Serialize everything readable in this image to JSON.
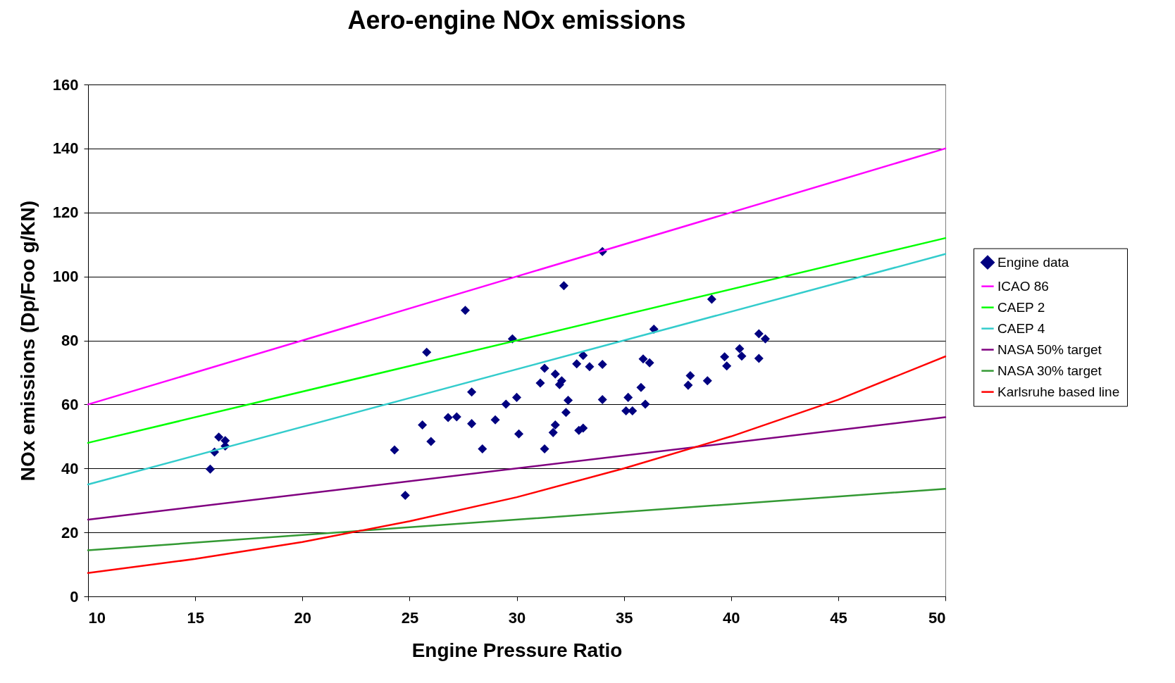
{
  "chart_data": {
    "type": "scatter",
    "title": "Aero-engine NOx emissions",
    "xlabel": "Engine Pressure Ratio",
    "ylabel": "NOx emissions (Dp/Foo g/KN)",
    "xlim": [
      10,
      50
    ],
    "xticks": [
      10,
      15,
      20,
      25,
      30,
      35,
      40,
      45,
      50
    ],
    "ylim": [
      0,
      160
    ],
    "yticks": [
      0,
      20,
      40,
      60,
      80,
      100,
      120,
      140,
      160
    ],
    "grid": "y",
    "legend": "right",
    "series": [
      {
        "name": "Engine data",
        "marker": "diamond",
        "color": "#000080",
        "x": [
          15.7,
          15.9,
          16.1,
          16.4,
          16.4,
          24.3,
          24.8,
          25.6,
          25.8,
          26.0,
          26.8,
          27.2,
          27.6,
          27.9,
          27.9,
          28.4,
          29.0,
          29.5,
          29.8,
          30.0,
          30.1,
          31.1,
          31.3,
          31.3,
          31.7,
          31.8,
          31.8,
          32.0,
          32.1,
          32.2,
          32.3,
          32.4,
          32.8,
          32.9,
          33.1,
          33.1,
          33.4,
          34.0,
          34.0,
          34.0,
          35.1,
          35.2,
          35.4,
          35.8,
          35.9,
          36.0,
          36.2,
          36.4,
          38.0,
          38.1,
          38.9,
          39.1,
          39.7,
          39.8,
          40.4,
          40.5,
          41.3,
          41.3,
          41.6
        ],
        "values": [
          39.8,
          45.1,
          49.8,
          48.7,
          47.0,
          45.8,
          31.6,
          53.6,
          76.3,
          48.4,
          55.9,
          56.1,
          89.4,
          63.9,
          54.0,
          46.1,
          55.2,
          60.1,
          80.5,
          62.2,
          50.8,
          66.7,
          71.3,
          46.1,
          51.2,
          69.5,
          53.6,
          66.2,
          67.4,
          97.1,
          57.5,
          61.3,
          72.7,
          51.9,
          75.3,
          52.6,
          71.8,
          107.8,
          72.5,
          61.5,
          58.0,
          62.2,
          58.0,
          65.3,
          74.2,
          60.1,
          73.0,
          83.5,
          66.0,
          69.0,
          67.4,
          92.9,
          74.9,
          72.0,
          77.4,
          75.1,
          74.4,
          82.1,
          80.5
        ]
      },
      {
        "name": "ICAO 86",
        "type": "line",
        "color": "#ff00ff",
        "x": [
          10,
          50
        ],
        "values": [
          60,
          140
        ]
      },
      {
        "name": "CAEP 2",
        "type": "line",
        "color": "#00ff00",
        "x": [
          10,
          50
        ],
        "values": [
          48,
          112
        ]
      },
      {
        "name": "CAEP 4",
        "type": "line",
        "color": "#33cccc",
        "x": [
          10,
          50
        ],
        "values": [
          35,
          107
        ]
      },
      {
        "name": "NASA  50% target",
        "type": "line",
        "color": "#800080",
        "x": [
          10,
          50
        ],
        "values": [
          24,
          56
        ]
      },
      {
        "name": "NASA 30% target",
        "type": "line",
        "color": "#339933",
        "x": [
          10,
          50
        ],
        "values": [
          14.4,
          33.6
        ]
      },
      {
        "name": "Karlsruhe based line",
        "type": "line",
        "color": "#ff0000",
        "x": [
          10,
          12.5,
          15,
          20,
          25,
          30,
          35,
          40,
          45,
          50
        ],
        "values": [
          7.3,
          9.5,
          11.7,
          17,
          23.5,
          31,
          40,
          50,
          61.5,
          75
        ]
      }
    ]
  }
}
